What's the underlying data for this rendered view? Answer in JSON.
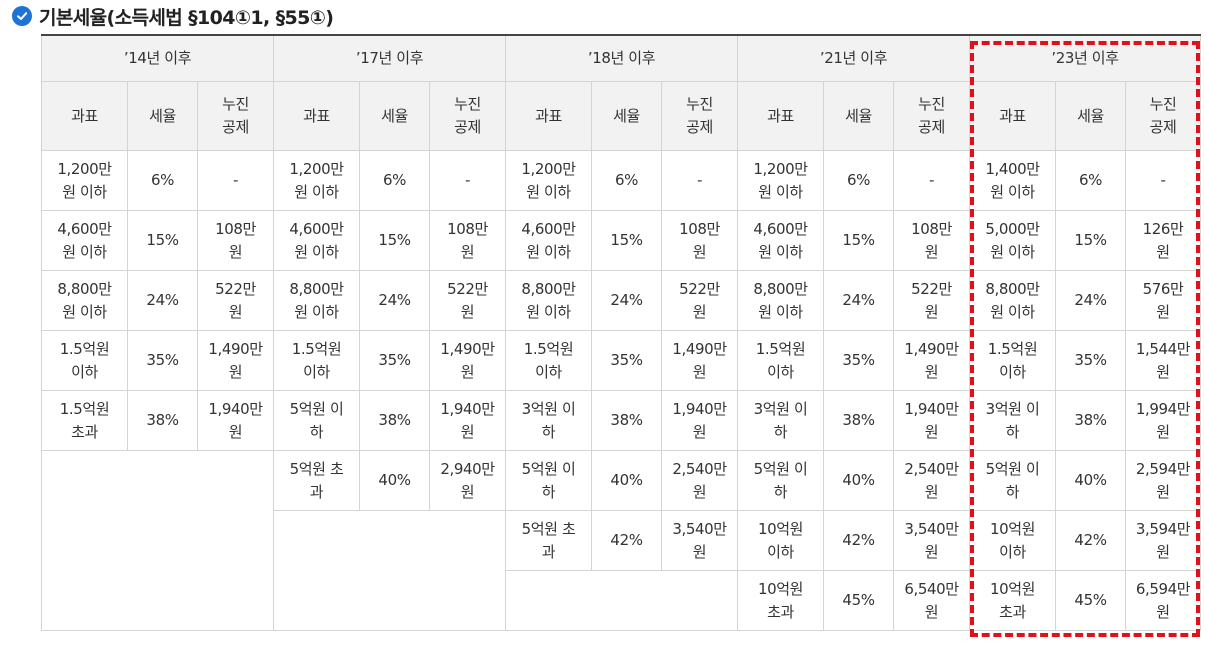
{
  "title": "기본세율(소득세법 §104①1, §55①)",
  "icons": {
    "title_icon": "check-circle-icon"
  },
  "colors": {
    "accent": "#1e74d6",
    "highlight": "#e0111b",
    "header_bg": "#f2f2f2"
  },
  "periods": [
    {
      "label": "’14년 이후",
      "columns": [
        "과표",
        "세율",
        "누진\n공제"
      ],
      "rows": [
        [
          "1,200만\n원 이하",
          "6%",
          "-"
        ],
        [
          "4,600만\n원 이하",
          "15%",
          "108만\n원"
        ],
        [
          "8,800만\n원 이하",
          "24%",
          "522만\n원"
        ],
        [
          "1.5억원\n이하",
          "35%",
          "1,490만\n원"
        ],
        [
          "1.5억원\n초과",
          "38%",
          "1,940만\n원"
        ]
      ]
    },
    {
      "label": "’17년 이후",
      "columns": [
        "과표",
        "세율",
        "누진\n공제"
      ],
      "rows": [
        [
          "1,200만\n원 이하",
          "6%",
          "-"
        ],
        [
          "4,600만\n원 이하",
          "15%",
          "108만\n원"
        ],
        [
          "8,800만\n원 이하",
          "24%",
          "522만\n원"
        ],
        [
          "1.5억원\n이하",
          "35%",
          "1,490만\n원"
        ],
        [
          "5억원 이\n하",
          "38%",
          "1,940만\n원"
        ],
        [
          "5억원 초\n과",
          "40%",
          "2,940만\n원"
        ]
      ]
    },
    {
      "label": "’18년 이후",
      "columns": [
        "과표",
        "세율",
        "누진\n공제"
      ],
      "rows": [
        [
          "1,200만\n원 이하",
          "6%",
          "-"
        ],
        [
          "4,600만\n원 이하",
          "15%",
          "108만\n원"
        ],
        [
          "8,800만\n원 이하",
          "24%",
          "522만\n원"
        ],
        [
          "1.5억원\n이하",
          "35%",
          "1,490만\n원"
        ],
        [
          "3억원 이\n하",
          "38%",
          "1,940만\n원"
        ],
        [
          "5억원 이\n하",
          "40%",
          "2,540만\n원"
        ],
        [
          "5억원 초\n과",
          "42%",
          "3,540만\n원"
        ]
      ]
    },
    {
      "label": "’21년 이후",
      "columns": [
        "과표",
        "세율",
        "누진\n공제"
      ],
      "rows": [
        [
          "1,200만\n원 이하",
          "6%",
          "-"
        ],
        [
          "4,600만\n원 이하",
          "15%",
          "108만\n원"
        ],
        [
          "8,800만\n원 이하",
          "24%",
          "522만\n원"
        ],
        [
          "1.5억원\n이하",
          "35%",
          "1,490만\n원"
        ],
        [
          "3억원 이\n하",
          "38%",
          "1,940만\n원"
        ],
        [
          "5억원 이\n하",
          "40%",
          "2,540만\n원"
        ],
        [
          "10억원\n이하",
          "42%",
          "3,540만\n원"
        ],
        [
          "10억원\n초과",
          "45%",
          "6,540만\n원"
        ]
      ]
    },
    {
      "label": "’23년 이후",
      "columns": [
        "과표",
        "세율",
        "누진\n공제"
      ],
      "rows": [
        [
          "1,400만\n원 이하",
          "6%",
          "-"
        ],
        [
          "5,000만\n원 이하",
          "15%",
          "126만\n원"
        ],
        [
          "8,800만\n원 이하",
          "24%",
          "576만\n원"
        ],
        [
          "1.5억원\n이하",
          "35%",
          "1,544만\n원"
        ],
        [
          "3억원 이\n하",
          "38%",
          "1,994만\n원"
        ],
        [
          "5억원 이\n하",
          "40%",
          "2,594만\n원"
        ],
        [
          "10억원\n이하",
          "42%",
          "3,594만\n원"
        ],
        [
          "10억원\n초과",
          "45%",
          "6,594만\n원"
        ]
      ]
    }
  ]
}
